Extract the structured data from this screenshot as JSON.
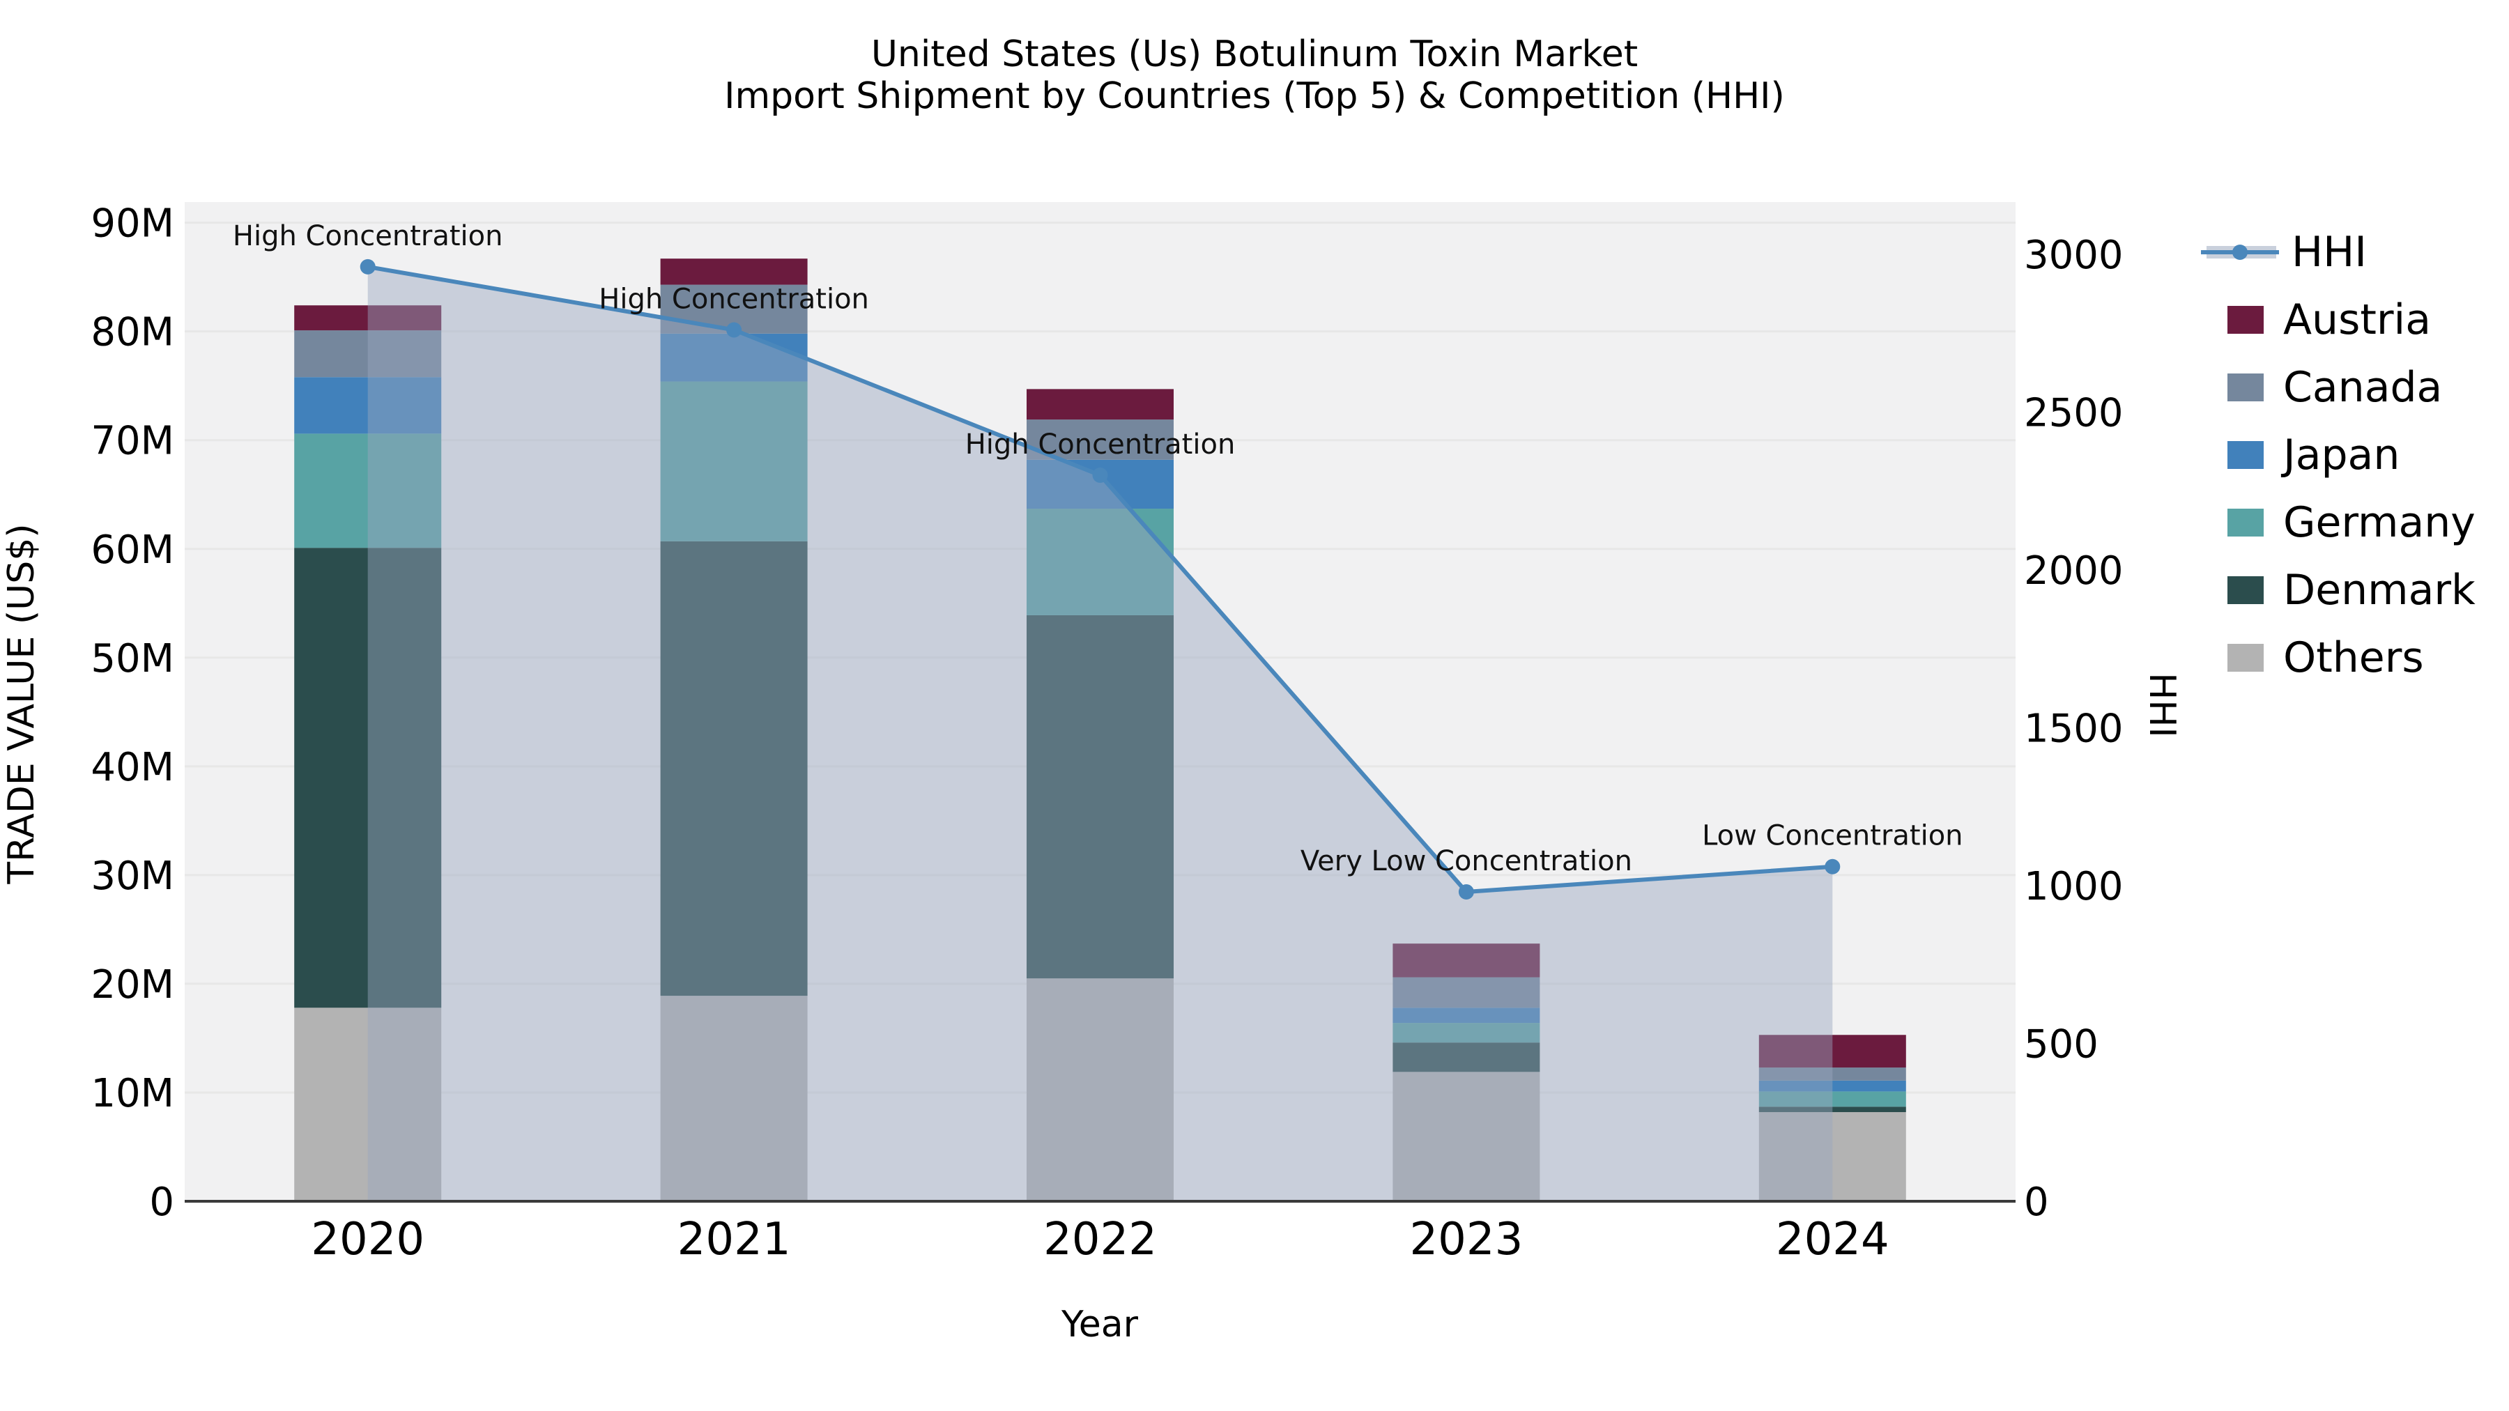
{
  "chart_data": {
    "type": "bar",
    "subtype": "stacked-bar-with-line-area",
    "title": "United States (Us) Botulinum Toxin Market",
    "subtitle": "Import Shipment by Countries (Top 5) & Competition (HHI)",
    "xlabel": "Year",
    "ylabel_left": "TRADE VALUE (US$)",
    "ylabel_right": "HHI",
    "categories": [
      "2020",
      "2021",
      "2022",
      "2023",
      "2024"
    ],
    "values_unit": "million US$",
    "stack_order_bottom_to_top": [
      "Others",
      "Denmark",
      "Germany",
      "Japan",
      "Canada",
      "Austria"
    ],
    "series": [
      {
        "name": "Austria",
        "color": "#6B1B3E",
        "values": [
          2.3,
          2.4,
          2.8,
          3.1,
          3.0
        ]
      },
      {
        "name": "Canada",
        "color": "#75879D",
        "values": [
          4.3,
          4.5,
          3.7,
          2.8,
          1.2
        ]
      },
      {
        "name": "Japan",
        "color": "#4181BB",
        "values": [
          5.2,
          4.4,
          4.5,
          1.4,
          1.0
        ]
      },
      {
        "name": "Germany",
        "color": "#58A3A4",
        "values": [
          10.5,
          14.7,
          9.8,
          1.8,
          1.4
        ]
      },
      {
        "name": "Denmark",
        "color": "#2B4D4D",
        "values": [
          42.3,
          41.8,
          33.4,
          2.7,
          0.5
        ]
      },
      {
        "name": "Others",
        "color": "#B3B3B3",
        "values": [
          17.8,
          18.9,
          20.5,
          11.9,
          8.2
        ]
      }
    ],
    "bar_totals": [
      82.4,
      86.7,
      74.7,
      23.7,
      15.3
    ],
    "hhi_line": {
      "name": "HHI",
      "color": "#4A87BB",
      "area_color": "rgba(154,166,190,0.45)",
      "legend_band_color": "#C9D0DC",
      "values": [
        2960,
        2760,
        2300,
        980,
        1060
      ]
    },
    "annotations": [
      {
        "year": "2020",
        "text": "High Concentration"
      },
      {
        "year": "2021",
        "text": "High Concentration"
      },
      {
        "year": "2022",
        "text": "High Concentration"
      },
      {
        "year": "2023",
        "text": "Very Low Concentration"
      },
      {
        "year": "2024",
        "text": "Low Concentration"
      }
    ],
    "left_axis": {
      "ticks": [
        {
          "v": 0,
          "label": "0"
        },
        {
          "v": 10,
          "label": "10M"
        },
        {
          "v": 20,
          "label": "20M"
        },
        {
          "v": 30,
          "label": "30M"
        },
        {
          "v": 40,
          "label": "40M"
        },
        {
          "v": 50,
          "label": "50M"
        },
        {
          "v": 60,
          "label": "60M"
        },
        {
          "v": 70,
          "label": "70M"
        },
        {
          "v": 80,
          "label": "80M"
        },
        {
          "v": 90,
          "label": "90M"
        }
      ],
      "range": [
        0,
        91.9
      ]
    },
    "right_axis": {
      "ticks": [
        {
          "v": 0,
          "label": "0"
        },
        {
          "v": 500,
          "label": "500"
        },
        {
          "v": 1000,
          "label": "1000"
        },
        {
          "v": 1500,
          "label": "1500"
        },
        {
          "v": 2000,
          "label": "2000"
        },
        {
          "v": 2500,
          "label": "2500"
        },
        {
          "v": 3000,
          "label": "3000"
        }
      ],
      "range": [
        0,
        3165
      ]
    },
    "grid": true,
    "legend_position": "right",
    "plot_bg_color": "#F1F1F2",
    "grid_color": "#E7E7E7",
    "axis_line_color": "#3A3A3A"
  }
}
